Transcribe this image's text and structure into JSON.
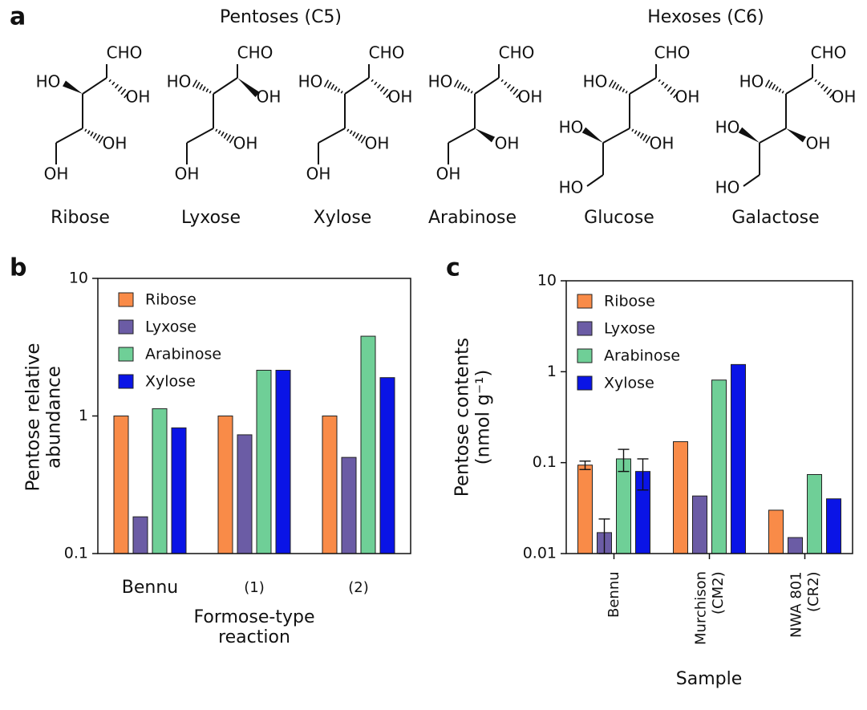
{
  "panel_a": {
    "label": "a",
    "groups": [
      "Pentoses (C5)",
      "Hexoses (C6)"
    ],
    "structures": [
      {
        "name": "Ribose",
        "atoms": [
          "CHO",
          "HO",
          "OH",
          "OH",
          "OH"
        ]
      },
      {
        "name": "Lyxose",
        "atoms": [
          "CHO",
          "HO",
          "OH",
          "OH",
          "OH"
        ]
      },
      {
        "name": "Xylose",
        "atoms": [
          "CHO",
          "HO",
          "OH",
          "OH",
          "OH"
        ]
      },
      {
        "name": "Arabinose",
        "atoms": [
          "CHO",
          "HO",
          "OH",
          "OH",
          "OH"
        ]
      },
      {
        "name": "Glucose",
        "atoms": [
          "CHO",
          "HO",
          "OH",
          "HO",
          "OH",
          "HO"
        ]
      },
      {
        "name": "Galactose",
        "atoms": [
          "CHO",
          "HO",
          "OH",
          "HO",
          "OH",
          "HO"
        ]
      }
    ]
  },
  "chart_data": [
    {
      "label": "b",
      "type": "bar",
      "ylabel": "Pentose relative abundance",
      "xlabel": "Formose-type reaction",
      "categories": [
        "Bennu",
        "(1)",
        "(2)"
      ],
      "log_scale": true,
      "ylim": [
        0.1,
        10
      ],
      "yticks": [
        0.1,
        1,
        10
      ],
      "legend": "upper left",
      "series": [
        {
          "name": "Ribose",
          "color": "#f98b48",
          "values": [
            1,
            1,
            1
          ]
        },
        {
          "name": "Lyxose",
          "color": "#6b5ca5",
          "values": [
            0.185,
            0.73,
            0.5
          ]
        },
        {
          "name": "Arabinose",
          "color": "#6fcf97",
          "values": [
            1.13,
            2.15,
            3.8
          ]
        },
        {
          "name": "Xylose",
          "color": "#0a14e6",
          "values": [
            0.82,
            2.15,
            1.9
          ]
        }
      ]
    },
    {
      "label": "c",
      "type": "bar",
      "ylabel": "Pentose contents (nmol g⁻¹)",
      "xlabel": "Sample",
      "categories": [
        "Bennu",
        "Murchison (CM2)",
        "NWA 801 (CR2)"
      ],
      "log_scale": true,
      "ylim": [
        0.01,
        10
      ],
      "yticks": [
        0.01,
        0.1,
        1,
        10
      ],
      "legend": "upper left",
      "series": [
        {
          "name": "Ribose",
          "color": "#f98b48",
          "values": [
            0.094,
            0.17,
            0.03
          ],
          "errors": [
            0.01,
            null,
            null
          ]
        },
        {
          "name": "Lyxose",
          "color": "#6b5ca5",
          "values": [
            0.017,
            0.043,
            0.015
          ],
          "errors": [
            0.007,
            null,
            null
          ]
        },
        {
          "name": "Arabinose",
          "color": "#6fcf97",
          "values": [
            0.11,
            0.81,
            0.074
          ],
          "errors": [
            0.03,
            null,
            null
          ]
        },
        {
          "name": "Xylose",
          "color": "#0a14e6",
          "values": [
            0.08,
            1.2,
            0.04
          ],
          "errors": [
            0.03,
            null,
            null
          ]
        }
      ]
    }
  ]
}
